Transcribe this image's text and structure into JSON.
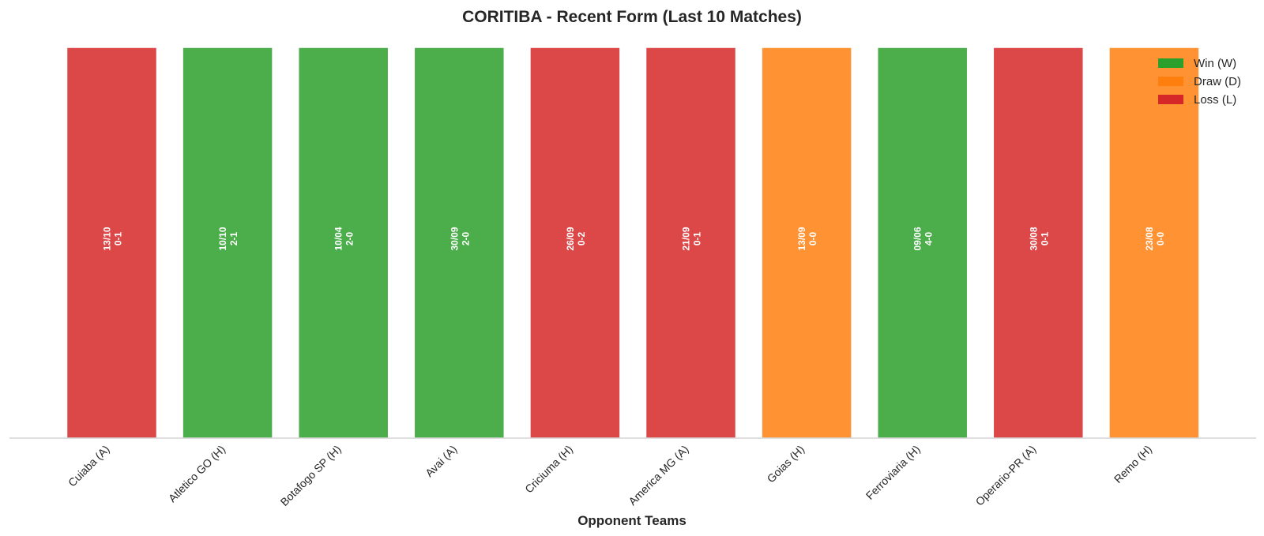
{
  "chart_data": {
    "type": "bar",
    "title": "CORITIBA - Recent Form (Last 10 Matches)",
    "xlabel": "Opponent Teams",
    "ylabel": "",
    "grid": false,
    "legend_position": "top-right",
    "categories": [
      "Cuiaba (A)",
      "Atletico GO (H)",
      "Botafogo SP (H)",
      "Avai (A)",
      "Criciuma (H)",
      "America MG (A)",
      "Goias (H)",
      "Ferroviaria (H)",
      "Operario-PR (A)",
      "Remo (H)"
    ],
    "values": [
      1,
      1,
      1,
      1,
      1,
      1,
      1,
      1,
      1,
      1
    ],
    "results": [
      "L",
      "W",
      "W",
      "W",
      "L",
      "L",
      "D",
      "W",
      "L",
      "D"
    ],
    "dates": [
      "13/10",
      "10/10",
      "10/04",
      "30/09",
      "26/09",
      "21/09",
      "13/09",
      "09/06",
      "30/08",
      "23/08"
    ],
    "scores": [
      "0-1",
      "2-1",
      "2-0",
      "2-0",
      "0-2",
      "0-1",
      "0-0",
      "4-0",
      "0-1",
      "0-0"
    ],
    "legend": [
      {
        "key": "W",
        "label": "Win (W)",
        "color": "#2ca02c"
      },
      {
        "key": "D",
        "label": "Draw (D)",
        "color": "#ff7f0e"
      },
      {
        "key": "L",
        "label": "Loss (L)",
        "color": "#d62728"
      }
    ],
    "colors": {
      "W": "#2ca02c",
      "D": "#ff7f0e",
      "L": "#d62728"
    }
  }
}
